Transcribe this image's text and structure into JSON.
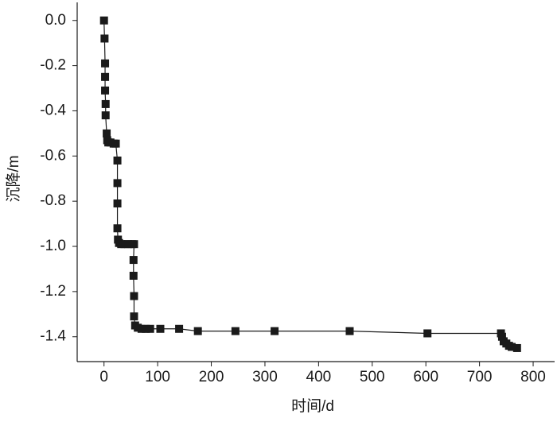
{
  "chart_data": {
    "type": "line",
    "x_label": "时间/d",
    "y_label": "沉降/m",
    "series": [
      {
        "color": "#1a1a1a",
        "x": [
          0,
          1,
          2,
          2,
          2,
          3,
          3,
          5,
          6,
          8,
          12,
          18,
          22,
          25,
          25,
          25,
          25,
          26,
          28,
          32,
          38,
          45,
          52,
          56,
          55,
          55,
          56,
          56,
          58,
          63,
          70,
          78,
          86,
          105,
          140,
          175,
          245,
          318,
          458,
          603,
          740,
          742,
          745,
          750,
          755,
          760,
          770
        ],
        "values": [
          0,
          -0.08,
          -0.19,
          -0.25,
          -0.31,
          -0.37,
          -0.42,
          -0.5,
          -0.53,
          -0.54,
          -0.54,
          -0.545,
          -0.545,
          -0.62,
          -0.72,
          -0.81,
          -0.92,
          -0.97,
          -0.985,
          -0.99,
          -0.99,
          -0.99,
          -0.99,
          -0.99,
          -1.06,
          -1.13,
          -1.22,
          -1.31,
          -1.35,
          -1.36,
          -1.365,
          -1.365,
          -1.365,
          -1.365,
          -1.365,
          -1.375,
          -1.375,
          -1.375,
          -1.375,
          -1.385,
          -1.385,
          -1.4,
          -1.42,
          -1.43,
          -1.44,
          -1.445,
          -1.45
        ]
      }
    ],
    "xlim": [
      -50,
      840
    ],
    "xticks": [
      0,
      100,
      200,
      300,
      400,
      500,
      600,
      700,
      800
    ],
    "ylim": [
      -1.51,
      0.08
    ],
    "yticks": [
      {
        "value": -1.4,
        "label": "-1.4"
      },
      -1.2,
      {
        "value": -1,
        "label": "-1.0"
      },
      -0.8,
      -0.6,
      -0.4,
      -0.2,
      {
        "value": 0,
        "label": "0.0"
      }
    ]
  }
}
